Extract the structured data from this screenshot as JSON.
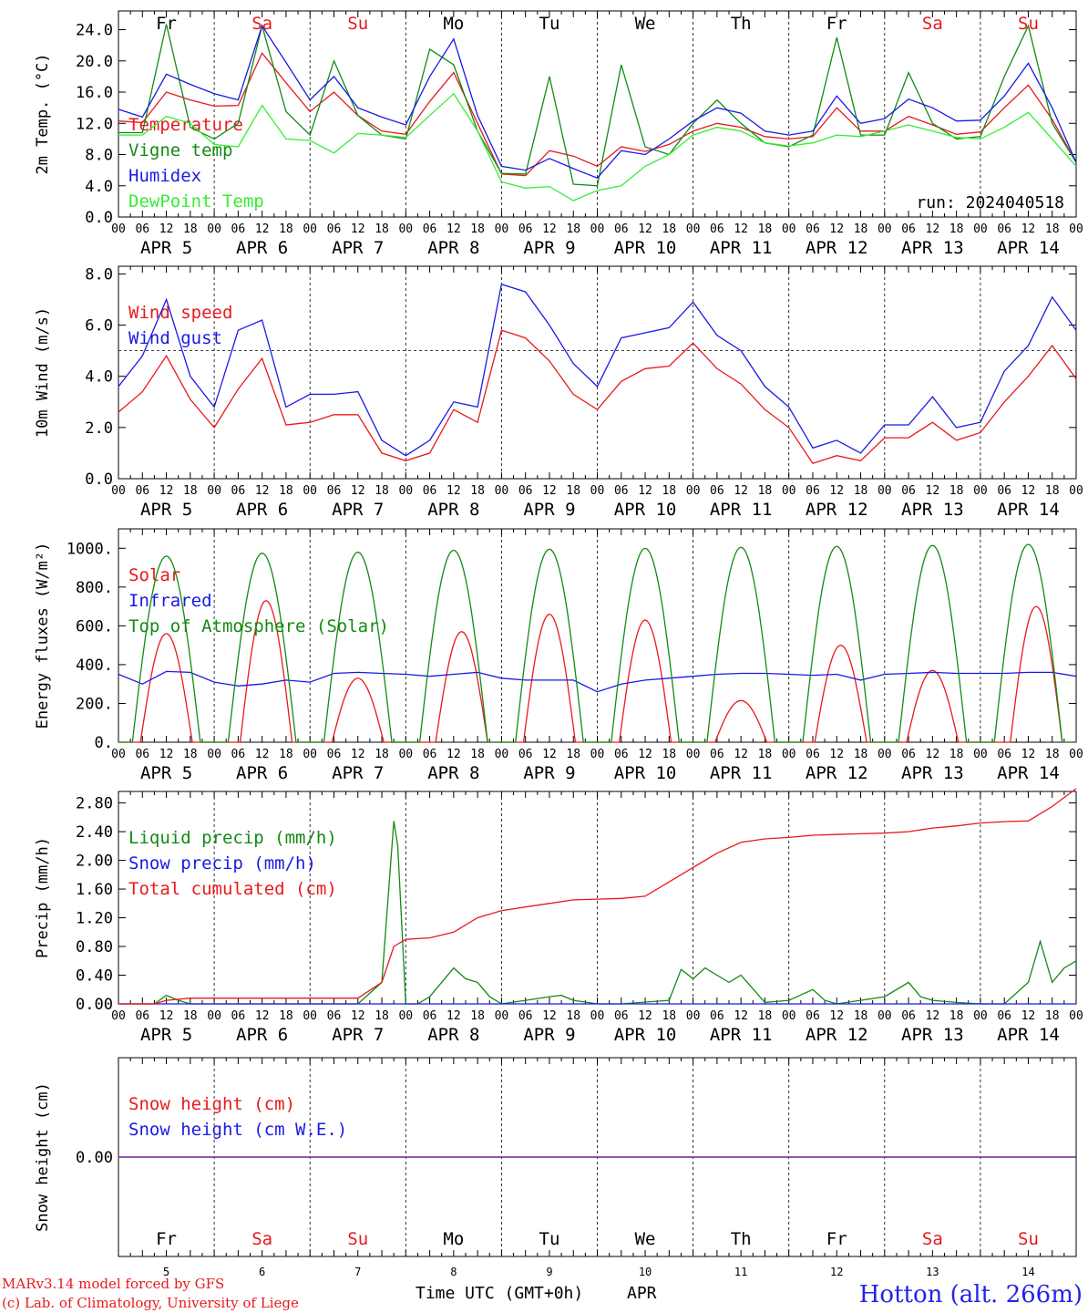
{
  "colors": {
    "red": "#e8191c",
    "green": "#138a13",
    "blue": "#1a1ae6",
    "lightgreen": "#33ee33",
    "purple": "#7f3fa0",
    "title_blue": "#2323e8",
    "credit_red": "#e8191c"
  },
  "x_axis": {
    "hour_ticks": [
      "00",
      "06",
      "12",
      "18"
    ],
    "last_tick": "00",
    "date_labels": [
      "APR  5",
      "APR  6",
      "APR  7",
      "APR  8",
      "APR  9",
      "APR 10",
      "APR 11",
      "APR 12",
      "APR 13",
      "APR 14"
    ],
    "day_names": [
      {
        "name": "Fr",
        "color": "black"
      },
      {
        "name": "Sa",
        "color": "red"
      },
      {
        "name": "Su",
        "color": "red"
      },
      {
        "name": "Mo",
        "color": "black"
      },
      {
        "name": "Tu",
        "color": "black"
      },
      {
        "name": "We",
        "color": "black"
      },
      {
        "name": "Th",
        "color": "black"
      },
      {
        "name": "Fr",
        "color": "black"
      },
      {
        "name": "Sa",
        "color": "red"
      },
      {
        "name": "Su",
        "color": "red"
      }
    ],
    "day_numbers": [
      "5",
      "6",
      "7",
      "8",
      "9",
      "10",
      "11",
      "12",
      "13",
      "14"
    ],
    "hours_total": 240
  },
  "footer": {
    "credit1": "MARv3.14 model forced by GFS",
    "credit2": "(c) Lab. of Climatology, University of Liege",
    "axis_title": "Time UTC (GMT+0h)",
    "month": "APR",
    "station": "Hotton (alt. 266m)"
  },
  "chart_data": [
    {
      "id": "temperature",
      "type": "line",
      "ylabel": "2m Temp. (°C)",
      "ylim": [
        0,
        26.4
      ],
      "yticks": [
        "0.0",
        "4.0",
        "8.0",
        "12.0",
        "16.0",
        "20.0",
        "24.0"
      ],
      "ytick_values": [
        0,
        4,
        8,
        12,
        16,
        20,
        24
      ],
      "grid": "vertical dashed at midnight",
      "legend_placement": "left",
      "annotation": "run: 2024040518",
      "series": [
        {
          "name": "Temperature",
          "color": "red",
          "x": [
            0,
            6,
            12,
            18,
            24,
            30,
            36,
            42,
            48,
            54,
            60,
            66,
            72,
            78,
            84,
            90,
            96,
            102,
            108,
            114,
            120,
            126,
            132,
            138,
            144,
            150,
            156,
            162,
            168,
            174,
            180,
            186,
            192,
            198,
            204,
            210,
            216,
            222,
            228,
            234,
            240
          ],
          "y": [
            12.3,
            12.1,
            16.0,
            15.0,
            14.2,
            14.3,
            21.0,
            17.2,
            13.5,
            16.0,
            13.0,
            11.0,
            10.6,
            14.8,
            18.5,
            12.0,
            5.5,
            5.3,
            8.5,
            7.8,
            6.5,
            9.0,
            8.4,
            9.3,
            11.0,
            12.0,
            11.5,
            10.3,
            10.0,
            10.3,
            14.0,
            11.0,
            11.0,
            12.9,
            11.8,
            10.6,
            10.9,
            14.0,
            16.9,
            12.5,
            7.0
          ]
        },
        {
          "name": "Vigne temp",
          "color": "green",
          "x": [
            0,
            6,
            12,
            18,
            24,
            30,
            36,
            42,
            48,
            54,
            60,
            66,
            72,
            78,
            84,
            90,
            96,
            102,
            108,
            114,
            120,
            126,
            132,
            138,
            144,
            150,
            156,
            162,
            168,
            174,
            180,
            186,
            192,
            198,
            204,
            210,
            216,
            222,
            228,
            234,
            240
          ],
          "y": [
            10.8,
            10.8,
            24.7,
            11.5,
            10.0,
            12.0,
            24.5,
            13.5,
            10.5,
            20.0,
            13.0,
            10.5,
            10.0,
            21.5,
            19.5,
            11.0,
            5.6,
            5.5,
            18.0,
            4.2,
            4.0,
            19.5,
            9.0,
            8.0,
            12.0,
            15.0,
            12.0,
            9.5,
            9.0,
            10.5,
            23.0,
            10.5,
            10.5,
            18.5,
            12.0,
            10.0,
            10.3,
            18.0,
            24.5,
            12.0,
            7.0
          ]
        },
        {
          "name": "Humidex",
          "color": "blue",
          "x": [
            0,
            6,
            12,
            18,
            24,
            30,
            36,
            42,
            48,
            54,
            60,
            66,
            72,
            78,
            84,
            90,
            96,
            102,
            108,
            114,
            120,
            126,
            132,
            138,
            144,
            150,
            156,
            162,
            168,
            174,
            180,
            186,
            192,
            198,
            204,
            210,
            216,
            222,
            228,
            234,
            240
          ],
          "y": [
            13.8,
            12.8,
            18.3,
            17.0,
            15.8,
            15.0,
            24.5,
            19.8,
            15.0,
            18.0,
            14.0,
            12.8,
            11.8,
            18.0,
            22.8,
            13.0,
            6.5,
            6.0,
            7.5,
            6.2,
            5.0,
            8.5,
            8.0,
            10.0,
            12.3,
            14.0,
            13.3,
            11.0,
            10.5,
            11.0,
            15.5,
            12.0,
            12.6,
            15.1,
            14.0,
            12.3,
            12.4,
            15.5,
            19.7,
            14.0,
            7.0
          ]
        },
        {
          "name": "DewPoint Temp",
          "color": "lightgreen",
          "x": [
            0,
            6,
            12,
            18,
            24,
            30,
            36,
            42,
            48,
            54,
            60,
            66,
            72,
            78,
            84,
            90,
            96,
            102,
            108,
            114,
            120,
            126,
            132,
            138,
            144,
            150,
            156,
            162,
            168,
            174,
            180,
            186,
            192,
            198,
            204,
            210,
            216,
            222,
            228,
            234,
            240
          ],
          "y": [
            10.5,
            10.5,
            12.9,
            12.0,
            9.3,
            9.0,
            14.3,
            10.0,
            9.8,
            8.2,
            10.7,
            10.5,
            10.2,
            13.0,
            15.8,
            11.0,
            4.5,
            3.7,
            3.9,
            2.1,
            3.4,
            4.0,
            6.5,
            8.0,
            10.5,
            11.5,
            11.0,
            9.5,
            9.1,
            9.5,
            10.5,
            10.3,
            11.0,
            11.8,
            11.0,
            10.2,
            10.0,
            11.5,
            13.4,
            10.0,
            6.5
          ]
        }
      ]
    },
    {
      "id": "wind",
      "type": "line",
      "ylabel": "10m Wind (m/s)",
      "ylim": [
        0,
        8.3
      ],
      "yticks": [
        "0.0",
        "2.0",
        "4.0",
        "6.0",
        "8.0"
      ],
      "ytick_values": [
        0,
        2,
        4,
        6,
        8
      ],
      "reference_line": 5.0,
      "legend_placement": "top-left",
      "series": [
        {
          "name": "Wind speed",
          "color": "red",
          "x": [
            0,
            6,
            12,
            18,
            24,
            30,
            36,
            42,
            48,
            54,
            60,
            66,
            72,
            78,
            84,
            90,
            96,
            102,
            108,
            114,
            120,
            126,
            132,
            138,
            144,
            150,
            156,
            162,
            168,
            174,
            180,
            186,
            192,
            198,
            204,
            210,
            216,
            222,
            228,
            234,
            240
          ],
          "y": [
            2.6,
            3.4,
            4.8,
            3.1,
            2.0,
            3.5,
            4.7,
            2.1,
            2.2,
            2.5,
            2.5,
            1.0,
            0.7,
            1.0,
            2.7,
            2.2,
            5.8,
            5.5,
            4.6,
            3.3,
            2.7,
            3.8,
            4.3,
            4.4,
            5.3,
            4.3,
            3.7,
            2.7,
            2.0,
            0.6,
            0.9,
            0.7,
            1.6,
            1.6,
            2.2,
            1.5,
            1.8,
            3.0,
            4.0,
            5.2,
            3.9
          ]
        },
        {
          "name": "Wind gust",
          "color": "blue",
          "x": [
            0,
            6,
            12,
            18,
            24,
            30,
            36,
            42,
            48,
            54,
            60,
            66,
            72,
            78,
            84,
            90,
            96,
            102,
            108,
            114,
            120,
            126,
            132,
            138,
            144,
            150,
            156,
            162,
            168,
            174,
            180,
            186,
            192,
            198,
            204,
            210,
            216,
            222,
            228,
            234,
            240
          ],
          "y": [
            3.6,
            4.8,
            7.0,
            4.0,
            2.8,
            5.8,
            6.2,
            2.8,
            3.3,
            3.3,
            3.4,
            1.5,
            0.9,
            1.5,
            3.0,
            2.8,
            7.6,
            7.3,
            6.0,
            4.5,
            3.6,
            5.5,
            5.7,
            5.9,
            6.9,
            5.6,
            5.0,
            3.6,
            2.8,
            1.2,
            1.5,
            1.0,
            2.1,
            2.1,
            3.2,
            2.0,
            2.2,
            4.2,
            5.2,
            7.1,
            5.8
          ]
        }
      ]
    },
    {
      "id": "energy",
      "type": "line",
      "ylabel": "Energy fluxes (W/m²)",
      "ylim": [
        0,
        1100
      ],
      "yticks": [
        "0.",
        "200.",
        "400.",
        "600.",
        "800.",
        "1000."
      ],
      "ytick_values": [
        0,
        200,
        400,
        600,
        800,
        1000
      ],
      "legend_placement": "top-left",
      "series": [
        {
          "name": "Solar",
          "color": "red",
          "peaks": [
            560,
            730,
            330,
            570,
            660,
            630,
            215,
            500,
            370,
            700
          ],
          "peak_hours": [
            12,
            13,
            12,
            14,
            12,
            12,
            12,
            13,
            12,
            14
          ]
        },
        {
          "name": "Infrared",
          "color": "blue",
          "x": [
            0,
            6,
            12,
            18,
            24,
            30,
            36,
            42,
            48,
            54,
            60,
            66,
            72,
            78,
            84,
            90,
            96,
            102,
            108,
            114,
            120,
            126,
            132,
            138,
            144,
            150,
            156,
            162,
            168,
            174,
            180,
            186,
            192,
            198,
            204,
            210,
            216,
            222,
            228,
            234,
            240
          ],
          "y": [
            350,
            300,
            365,
            360,
            310,
            290,
            300,
            320,
            310,
            355,
            360,
            355,
            350,
            340,
            350,
            360,
            330,
            320,
            320,
            320,
            260,
            300,
            320,
            330,
            340,
            350,
            355,
            355,
            350,
            345,
            350,
            320,
            350,
            355,
            360,
            355,
            355,
            355,
            360,
            360,
            340
          ]
        },
        {
          "name": "Top of Atmosphere (Solar)",
          "color": "green",
          "peaks": [
            960,
            975,
            980,
            990,
            995,
            1000,
            1005,
            1010,
            1015,
            1020
          ]
        }
      ]
    },
    {
      "id": "precip",
      "type": "line",
      "ylabel": "Precip (mm/h)",
      "ylim": [
        0,
        2.96
      ],
      "yticks": [
        "0.00",
        "0.40",
        "0.80",
        "1.20",
        "1.60",
        "2.00",
        "2.40",
        "2.80"
      ],
      "ytick_values": [
        0,
        0.4,
        0.8,
        1.2,
        1.6,
        2.0,
        2.4,
        2.8
      ],
      "legend_placement": "top-left",
      "series": [
        {
          "name": "Liquid precip (mm/h)",
          "color": "green",
          "x": [
            0,
            9,
            12,
            15,
            18,
            60,
            66,
            69,
            70,
            72,
            75,
            78,
            84,
            87,
            90,
            93,
            96,
            102,
            108,
            111,
            114,
            120,
            126,
            138,
            141,
            144,
            147,
            150,
            153,
            156,
            162,
            168,
            174,
            177,
            180,
            186,
            192,
            198,
            201,
            204,
            210,
            216,
            222,
            228,
            231,
            234,
            237,
            240
          ],
          "y": [
            0,
            0,
            0.12,
            0.05,
            0,
            0,
            0.3,
            2.55,
            2.2,
            0,
            0,
            0.1,
            0.5,
            0.35,
            0.3,
            0.1,
            0,
            0.05,
            0.1,
            0.12,
            0.05,
            0,
            0,
            0.05,
            0.48,
            0.35,
            0.5,
            0.4,
            0.3,
            0.4,
            0.02,
            0.05,
            0.2,
            0.05,
            0,
            0.05,
            0.1,
            0.3,
            0.1,
            0.05,
            0.02,
            0,
            0,
            0.3,
            0.87,
            0.3,
            0.5,
            0.6
          ]
        },
        {
          "name": "Snow precip (mm/h)",
          "color": "blue",
          "x": [
            0,
            240
          ],
          "y": [
            0,
            0
          ]
        },
        {
          "name": "Total cumulated (cm)",
          "color": "red",
          "x": [
            0,
            9,
            12,
            18,
            24,
            30,
            36,
            42,
            48,
            54,
            60,
            66,
            69,
            72,
            78,
            84,
            90,
            96,
            102,
            108,
            114,
            120,
            126,
            132,
            138,
            144,
            150,
            156,
            162,
            168,
            174,
            180,
            186,
            192,
            198,
            204,
            210,
            216,
            222,
            228,
            234,
            240
          ],
          "y": [
            0,
            0,
            0.05,
            0.08,
            0.08,
            0.08,
            0.08,
            0.08,
            0.08,
            0.08,
            0.08,
            0.3,
            0.8,
            0.9,
            0.92,
            1.0,
            1.2,
            1.3,
            1.35,
            1.4,
            1.45,
            1.46,
            1.47,
            1.5,
            1.7,
            1.9,
            2.1,
            2.25,
            2.3,
            2.32,
            2.35,
            2.36,
            2.37,
            2.38,
            2.4,
            2.45,
            2.48,
            2.52,
            2.54,
            2.55,
            2.75,
            3.0
          ]
        }
      ]
    },
    {
      "id": "snow",
      "type": "line",
      "ylabel": "Snow height (cm)",
      "ylim": [
        -1,
        1
      ],
      "yticks": [
        "0.00"
      ],
      "ytick_values": [
        0
      ],
      "legend_placement": "top-left",
      "series": [
        {
          "name": "Snow height (cm)",
          "color": "red",
          "x": [
            0,
            240
          ],
          "y": [
            0,
            0
          ]
        },
        {
          "name": "Snow height (cm W.E.)",
          "color": "blue",
          "x": [
            0,
            240
          ],
          "y": [
            0,
            0
          ]
        }
      ]
    }
  ]
}
